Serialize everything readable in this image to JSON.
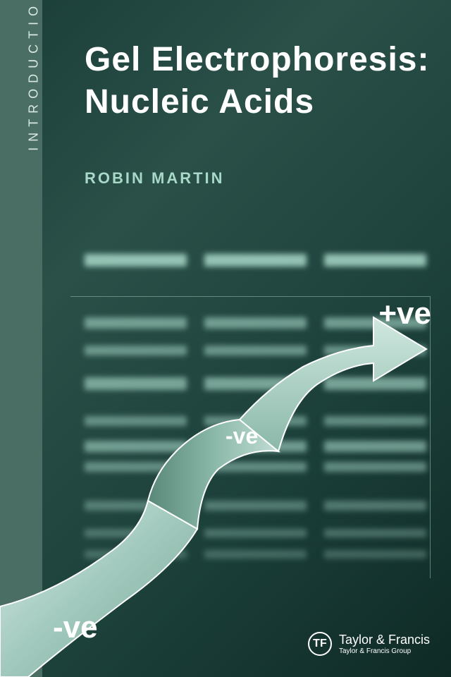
{
  "spine": {
    "series": "INTRODUCTION TO BIOTECHNIQUES"
  },
  "title": {
    "line1": "Gel Electrophoresis:",
    "line2": "Nucleic Acids"
  },
  "author": "ROBIN MARTIN",
  "labels": {
    "positive": "+ve",
    "negative": "-ve"
  },
  "publisher": {
    "name": "Taylor & Francis",
    "group": "Taylor & Francis Group",
    "logo": "TF"
  },
  "colors": {
    "bg_dark": "#1a3d38",
    "bg_mid": "#2a5048",
    "spine": "#4a6d64",
    "band": "#a8d8c8",
    "white": "#ffffff",
    "ribbon_light": "#d0e8e0",
    "ribbon_mid": "#8ab8a8",
    "ribbon_dark": "#6a9888"
  },
  "gel": {
    "lanes": [
      120,
      290,
      460
    ],
    "lane_width": 145,
    "rows": [
      {
        "y": 0,
        "h": 18,
        "opacity": 0.85
      },
      {
        "y": 90,
        "h": 16,
        "opacity": 0.6
      },
      {
        "y": 130,
        "h": 14,
        "opacity": 0.55
      },
      {
        "y": 175,
        "h": 18,
        "opacity": 0.65
      },
      {
        "y": 230,
        "h": 14,
        "opacity": 0.5
      },
      {
        "y": 265,
        "h": 16,
        "opacity": 0.6
      },
      {
        "y": 295,
        "h": 14,
        "opacity": 0.5
      },
      {
        "y": 350,
        "h": 14,
        "opacity": 0.4
      },
      {
        "y": 390,
        "h": 12,
        "opacity": 0.35
      },
      {
        "y": 420,
        "h": 12,
        "opacity": 0.3
      }
    ]
  }
}
